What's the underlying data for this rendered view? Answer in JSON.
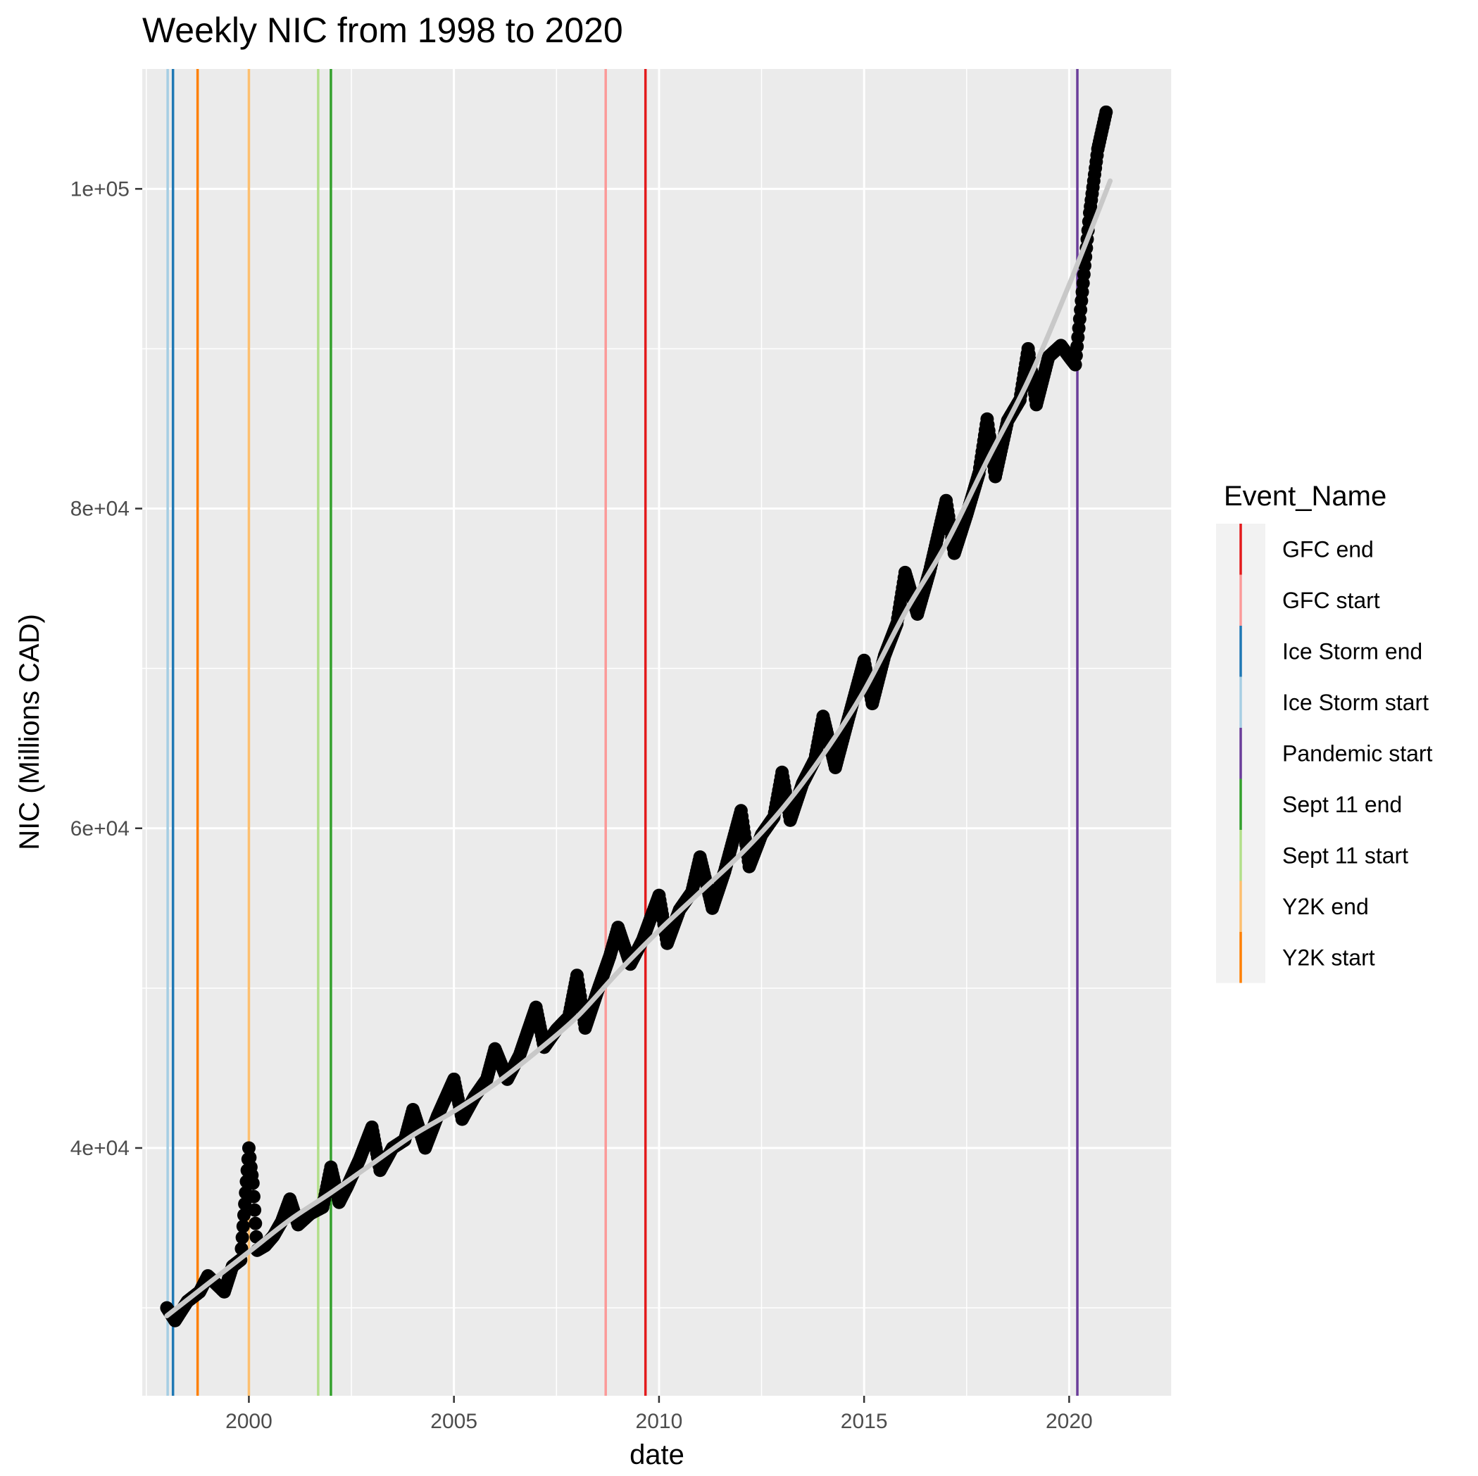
{
  "chart_data": {
    "type": "scatter",
    "title": "Weekly NIC from 1998 to 2020",
    "xlabel": "date",
    "ylabel": "NIC (Millions CAD)",
    "xlim": [
      1997.4,
      2022.5
    ],
    "ylim": [
      24500,
      107500
    ],
    "x_ticks": [
      2000,
      2005,
      2010,
      2015,
      2020
    ],
    "x_tick_labels": [
      "2000",
      "2005",
      "2010",
      "2015",
      "2020"
    ],
    "y_ticks": [
      40000,
      60000,
      80000,
      100000
    ],
    "y_tick_labels": [
      "4e+04",
      "6e+04",
      "8e+04",
      "1e+05"
    ],
    "grid": true,
    "panel_background": "#ebebeb",
    "point_color": "#000000",
    "trend_color": "#c8c8c8",
    "series": [
      {
        "points": [
          [
            1998.0,
            30000
          ],
          [
            1998.2,
            29200
          ],
          [
            1998.5,
            30400
          ],
          [
            1998.8,
            31000
          ],
          [
            1999.0,
            32000
          ],
          [
            1999.2,
            31500
          ],
          [
            1999.4,
            31000
          ],
          [
            1999.6,
            32600
          ],
          [
            1999.8,
            33000
          ],
          [
            2000.0,
            40000
          ],
          [
            2000.05,
            38800
          ],
          [
            2000.1,
            37800
          ],
          [
            2000.2,
            33600
          ],
          [
            2000.4,
            33900
          ],
          [
            2000.6,
            34500
          ],
          [
            2000.8,
            35400
          ],
          [
            2001.0,
            36800
          ],
          [
            2001.2,
            35200
          ],
          [
            2001.5,
            35900
          ],
          [
            2001.8,
            36300
          ],
          [
            2002.0,
            38800
          ],
          [
            2002.2,
            36600
          ],
          [
            2002.4,
            37600
          ],
          [
            2002.7,
            39300
          ],
          [
            2003.0,
            41300
          ],
          [
            2003.2,
            38600
          ],
          [
            2003.5,
            40000
          ],
          [
            2003.8,
            40500
          ],
          [
            2004.0,
            42400
          ],
          [
            2004.3,
            40000
          ],
          [
            2004.6,
            42000
          ],
          [
            2005.0,
            44300
          ],
          [
            2005.2,
            41800
          ],
          [
            2005.5,
            43200
          ],
          [
            2005.8,
            44300
          ],
          [
            2006.0,
            46200
          ],
          [
            2006.3,
            44300
          ],
          [
            2006.6,
            45800
          ],
          [
            2007.0,
            48800
          ],
          [
            2007.2,
            46300
          ],
          [
            2007.5,
            47400
          ],
          [
            2007.8,
            48200
          ],
          [
            2008.0,
            50800
          ],
          [
            2008.2,
            47500
          ],
          [
            2008.5,
            49800
          ],
          [
            2008.8,
            52000
          ],
          [
            2009.0,
            53800
          ],
          [
            2009.3,
            51500
          ],
          [
            2009.6,
            53000
          ],
          [
            2010.0,
            55800
          ],
          [
            2010.2,
            52800
          ],
          [
            2010.5,
            54900
          ],
          [
            2010.8,
            56000
          ],
          [
            2011.0,
            58200
          ],
          [
            2011.3,
            55000
          ],
          [
            2011.6,
            57300
          ],
          [
            2012.0,
            61100
          ],
          [
            2012.2,
            57600
          ],
          [
            2012.5,
            59600
          ],
          [
            2012.8,
            60700
          ],
          [
            2013.0,
            63500
          ],
          [
            2013.2,
            60500
          ],
          [
            2013.5,
            62800
          ],
          [
            2013.8,
            64300
          ],
          [
            2014.0,
            67000
          ],
          [
            2014.3,
            63800
          ],
          [
            2014.6,
            66700
          ],
          [
            2015.0,
            70500
          ],
          [
            2015.2,
            67800
          ],
          [
            2015.5,
            70800
          ],
          [
            2015.8,
            72800
          ],
          [
            2016.0,
            76000
          ],
          [
            2016.3,
            73400
          ],
          [
            2016.6,
            76100
          ],
          [
            2017.0,
            80500
          ],
          [
            2017.2,
            77200
          ],
          [
            2017.5,
            79600
          ],
          [
            2017.8,
            82200
          ],
          [
            2018.0,
            85600
          ],
          [
            2018.2,
            82000
          ],
          [
            2018.5,
            85500
          ],
          [
            2018.8,
            86800
          ],
          [
            2019.0,
            90000
          ],
          [
            2019.2,
            86500
          ],
          [
            2019.5,
            89500
          ],
          [
            2019.8,
            90200
          ],
          [
            2020.0,
            89500
          ],
          [
            2020.15,
            89000
          ],
          [
            2020.3,
            93000
          ],
          [
            2020.5,
            98500
          ],
          [
            2020.7,
            102500
          ],
          [
            2020.9,
            104800
          ]
        ]
      }
    ],
    "trend_points": [
      [
        1998.0,
        29500
      ],
      [
        1999.0,
        31500
      ],
      [
        2000.0,
        33500
      ],
      [
        2001.0,
        35500
      ],
      [
        2002.0,
        37200
      ],
      [
        2003.0,
        39000
      ],
      [
        2004.0,
        40800
      ],
      [
        2005.0,
        42300
      ],
      [
        2006.0,
        44000
      ],
      [
        2007.0,
        46000
      ],
      [
        2008.0,
        48200
      ],
      [
        2009.0,
        51000
      ],
      [
        2010.0,
        53600
      ],
      [
        2011.0,
        56000
      ],
      [
        2012.0,
        58400
      ],
      [
        2013.0,
        61200
      ],
      [
        2014.0,
        64600
      ],
      [
        2015.0,
        68600
      ],
      [
        2016.0,
        73500
      ],
      [
        2017.0,
        77800
      ],
      [
        2018.0,
        83000
      ],
      [
        2019.0,
        88000
      ],
      [
        2020.0,
        94000
      ],
      [
        2021.0,
        100500
      ]
    ],
    "events": [
      {
        "name": "Ice Storm start",
        "date": 1998.02,
        "color": "#a6cee3"
      },
      {
        "name": "Ice Storm end",
        "date": 1998.15,
        "color": "#1f78b4"
      },
      {
        "name": "Y2K start",
        "date": 1998.75,
        "color": "#ff7f00"
      },
      {
        "name": "Y2K end",
        "date": 2000.0,
        "color": "#fdbf6f"
      },
      {
        "name": "Sept 11 start",
        "date": 2001.69,
        "color": "#b2df8a"
      },
      {
        "name": "Sept 11 end",
        "date": 2002.0,
        "color": "#33a02c"
      },
      {
        "name": "GFC start",
        "date": 2008.7,
        "color": "#fb9a99"
      },
      {
        "name": "GFC end",
        "date": 2009.67,
        "color": "#e31a1c"
      },
      {
        "name": "Pandemic start",
        "date": 2020.2,
        "color": "#6a3d9a"
      }
    ],
    "legend": {
      "title": "Event_Name",
      "placement": "right",
      "entries": [
        {
          "label": "GFC end",
          "color": "#e31a1c"
        },
        {
          "label": "GFC start",
          "color": "#fb9a99"
        },
        {
          "label": "Ice Storm end",
          "color": "#1f78b4"
        },
        {
          "label": "Ice Storm start",
          "color": "#a6cee3"
        },
        {
          "label": "Pandemic start",
          "color": "#6a3d9a"
        },
        {
          "label": "Sept 11 end",
          "color": "#33a02c"
        },
        {
          "label": "Sept 11 start",
          "color": "#b2df8a"
        },
        {
          "label": "Y2K end",
          "color": "#fdbf6f"
        },
        {
          "label": "Y2K start",
          "color": "#ff7f00"
        }
      ]
    }
  }
}
